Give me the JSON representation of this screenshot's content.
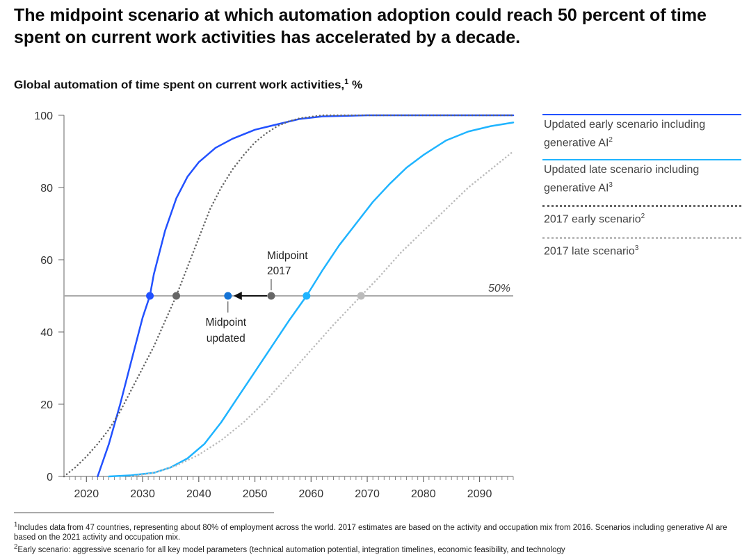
{
  "title": "The midpoint scenario at which automation adoption could reach 50 percent of time spent on current work activities has accelerated by a decade.",
  "subtitle": "Global automation of time spent on current work activities,",
  "subtitle_sup": "1",
  "subtitle_unit": " %",
  "colors": {
    "early_updated": "#2251ff",
    "late_updated": "#1fb4ff",
    "early_2017": "#666666",
    "late_2017": "#bbbbbb",
    "reference": "#aaaaaa"
  },
  "legend": [
    {
      "label": "Updated early scenario including generative AI",
      "sup": "2"
    },
    {
      "label": "Updated late scenario including generative AI",
      "sup": "3"
    },
    {
      "label": "2017 early scenario",
      "sup": "2"
    },
    {
      "label": "2017 late scenario",
      "sup": "3"
    }
  ],
  "annotations": {
    "midpoint_2017_line1": "Midpoint",
    "midpoint_2017_line2": "2017",
    "midpoint_updated_line1": "Midpoint",
    "midpoint_updated_line2": "updated",
    "fifty_label": "50%"
  },
  "chart_data": {
    "type": "line",
    "xlim": [
      2016,
      2096
    ],
    "ylim": [
      0,
      100
    ],
    "x_ticks": [
      2020,
      2030,
      2040,
      2050,
      2060,
      2070,
      2080,
      2090
    ],
    "y_ticks": [
      0,
      20,
      40,
      60,
      80,
      100
    ],
    "reference_line": 50,
    "series": [
      {
        "name": "Updated early scenario including generative AI",
        "style": "solid",
        "color": "#2251ff",
        "x": [
          2022,
          2024,
          2026,
          2028,
          2030,
          2031.3,
          2032,
          2034,
          2036,
          2038,
          2040,
          2043,
          2046,
          2050,
          2054,
          2058,
          2062,
          2070,
          2080,
          2096
        ],
        "y": [
          0,
          9,
          20,
          32,
          44,
          50,
          56,
          68,
          77,
          83,
          87,
          91,
          93.5,
          96,
          97.5,
          99,
          99.7,
          100,
          100,
          100
        ]
      },
      {
        "name": "Updated late scenario including generative AI",
        "style": "solid",
        "color": "#1fb4ff",
        "x": [
          2024,
          2028,
          2032,
          2035,
          2038,
          2041,
          2044,
          2047,
          2050,
          2053,
          2056,
          2059.2,
          2062,
          2065,
          2068,
          2071,
          2074,
          2077,
          2080,
          2084,
          2088,
          2092,
          2096
        ],
        "y": [
          0,
          0.3,
          1,
          2.5,
          5,
          9,
          15,
          22,
          29,
          36,
          43,
          50,
          57,
          64,
          70,
          76,
          81,
          85.5,
          89,
          93,
          95.5,
          97,
          98
        ]
      },
      {
        "name": "2017 early scenario",
        "style": "dotted",
        "color": "#666666",
        "x": [
          2016,
          2018,
          2020,
          2022,
          2024,
          2026,
          2028,
          2030,
          2032,
          2034,
          2036,
          2038,
          2040,
          2042,
          2044,
          2046,
          2048,
          2050,
          2052,
          2054,
          2056,
          2058,
          2062,
          2066,
          2096
        ],
        "y": [
          0,
          2.5,
          5.5,
          9,
          13,
          18,
          24,
          30,
          36,
          43,
          50,
          58,
          66,
          74,
          80,
          85,
          89,
          92.5,
          95,
          97,
          98.3,
          99.2,
          100,
          100,
          100
        ]
      },
      {
        "name": "2017 late scenario",
        "style": "dotted",
        "color": "#bbbbbb",
        "x": [
          2028,
          2032,
          2036,
          2040,
          2044,
          2048,
          2052,
          2056,
          2060,
          2064,
          2068.9,
          2072,
          2076,
          2080,
          2084,
          2088,
          2092,
          2096
        ],
        "y": [
          0,
          1,
          3,
          6,
          10,
          15,
          21,
          28,
          35,
          42,
          50,
          55,
          62,
          68,
          74,
          80,
          85,
          90
        ]
      }
    ],
    "markers": [
      {
        "x": 2031.3,
        "y": 50,
        "color": "#2251ff"
      },
      {
        "x": 2036,
        "y": 50,
        "color": "#666666"
      },
      {
        "x": 2045.2,
        "y": 50,
        "color": "#1473d6"
      },
      {
        "x": 2052.9,
        "y": 50,
        "color": "#666666"
      },
      {
        "x": 2059.2,
        "y": 50,
        "color": "#1fb4ff"
      },
      {
        "x": 2068.9,
        "y": 50,
        "color": "#bbbbbb"
      }
    ],
    "arrow": {
      "from_x": 2052.9,
      "to_x": 2045.2,
      "y": 50
    }
  },
  "footnotes": [
    {
      "sup": "1",
      "text": "Includes data from 47 countries, representing about 80% of employment across the world. 2017 estimates are based on the activity and occupation mix from 2016. Scenarios including generative AI are based on the 2021 activity and occupation mix."
    },
    {
      "sup": "2",
      "text": "Early scenario: aggressive scenario for all key model parameters (technical automation potential, integration timelines, economic feasibility, and technology"
    }
  ]
}
